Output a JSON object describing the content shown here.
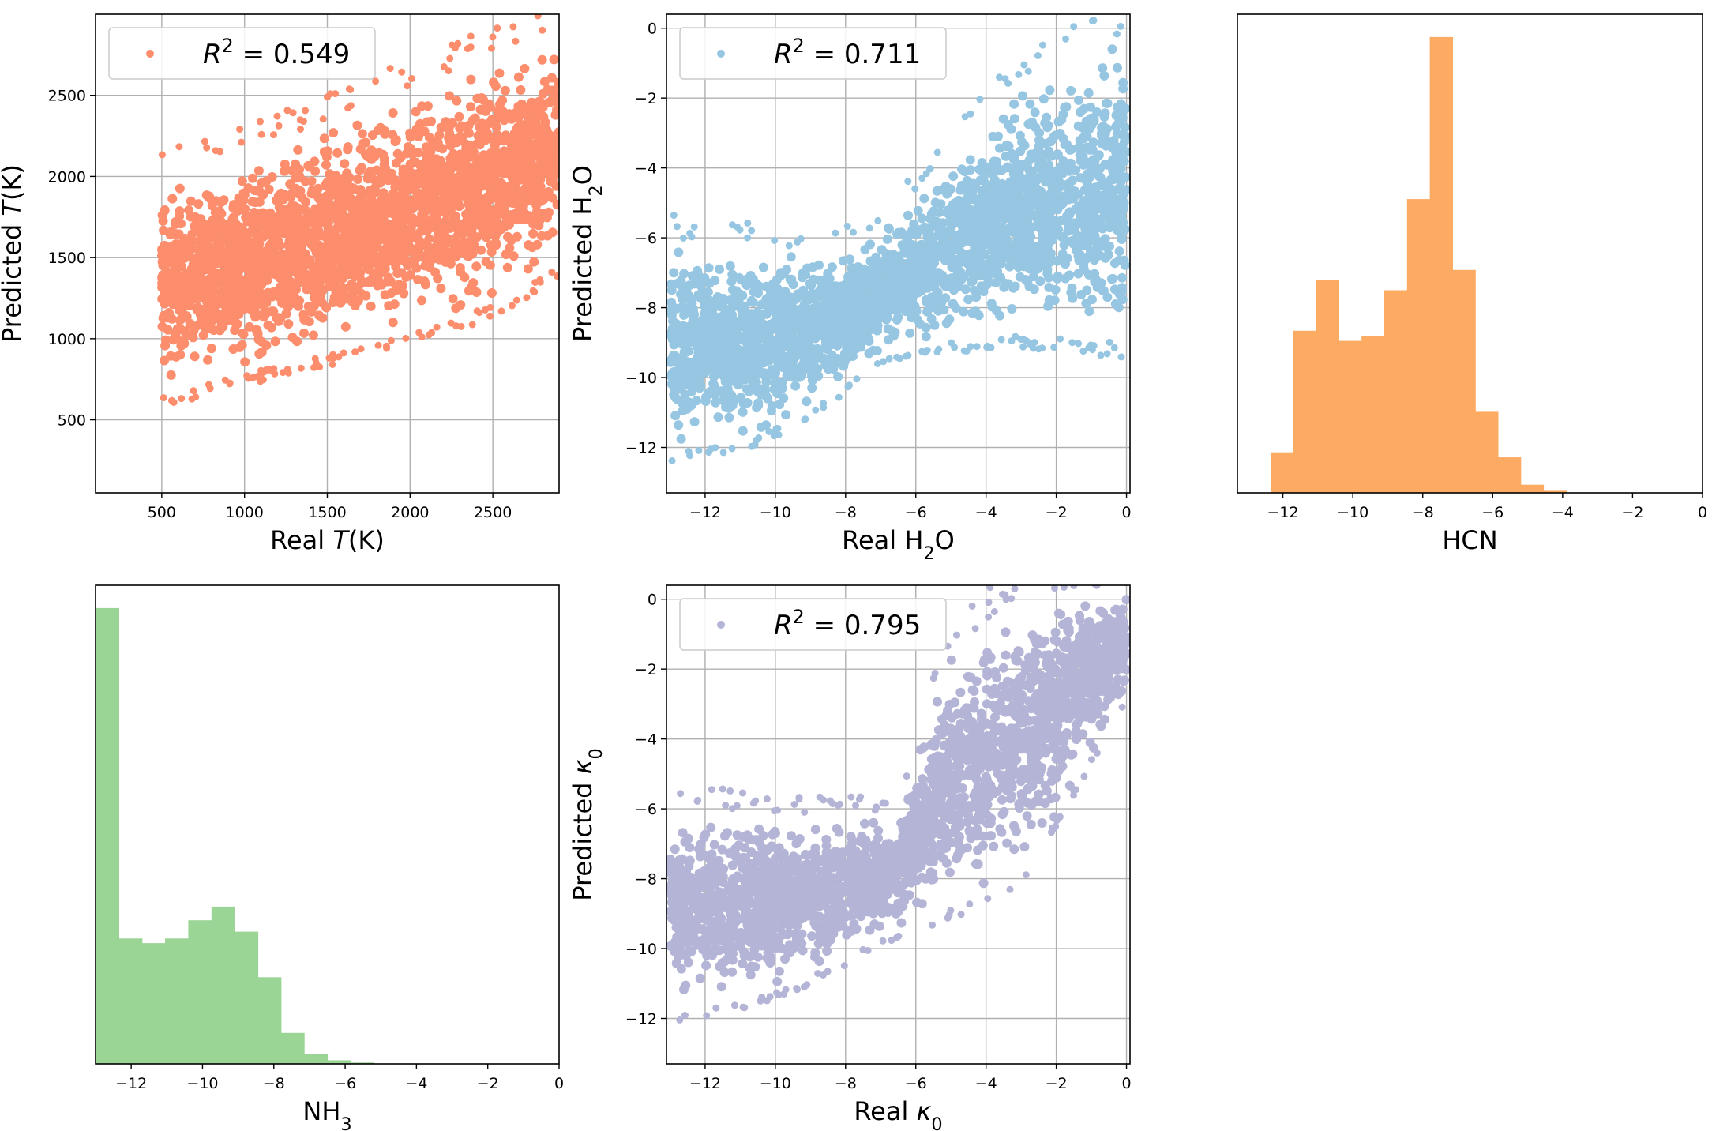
{
  "chart_data": [
    {
      "id": "temperature",
      "type": "scatter",
      "color": "#fc8d6d",
      "xlabel": {
        "prefix": "Real ",
        "italic": "T",
        "suffix": "(K)"
      },
      "ylabel": {
        "prefix": "Predicted ",
        "italic": "T",
        "suffix": "(K)"
      },
      "xlim": [
        100,
        2900
      ],
      "ylim": [
        50,
        3000
      ],
      "xticks": [
        500,
        1000,
        1500,
        2000,
        2500
      ],
      "yticks": [
        500,
        1000,
        1500,
        2000,
        2500
      ],
      "grid": true,
      "legend": {
        "label": "R² = 0.549",
        "r2_prefix": "R",
        "r2_power": "2",
        "r2_value": " = 0.549",
        "position": "top-left"
      },
      "band": [
        [
          500,
          650,
          2050
        ],
        [
          1000,
          780,
          2150
        ],
        [
          1500,
          900,
          2350
        ],
        [
          2000,
          1050,
          2550
        ],
        [
          2500,
          1200,
          2750
        ],
        [
          2900,
          1450,
          2880
        ]
      ]
    },
    {
      "id": "h2o",
      "type": "scatter",
      "color": "#96c6e1",
      "xlabel": {
        "prefix": "Real H",
        "sub": "2",
        "suffix": "O"
      },
      "ylabel": {
        "prefix": "Predicted H",
        "sub": "2",
        "suffix": "O"
      },
      "xlim": [
        -13.1,
        0.1
      ],
      "ylim": [
        -13.3,
        0.4
      ],
      "xticks": [
        -12,
        -10,
        -8,
        -6,
        -4,
        -2,
        0
      ],
      "yticks": [
        -12,
        -10,
        -8,
        -6,
        -4,
        -2,
        0
      ],
      "grid": true,
      "legend": {
        "label": "R² = 0.711",
        "r2_prefix": "R",
        "r2_power": "2",
        "r2_value": " = 0.711",
        "position": "top-left"
      },
      "band": [
        [
          -13,
          -12.1,
          -6.0
        ],
        [
          -11,
          -11.9,
          -6.2
        ],
        [
          -9,
          -11.0,
          -6.4
        ],
        [
          -7,
          -9.5,
          -5.8
        ],
        [
          -5,
          -9.0,
          -3.5
        ],
        [
          -3,
          -8.8,
          -1.5
        ],
        [
          0,
          -9.0,
          -0.05
        ]
      ]
    },
    {
      "id": "hcn",
      "type": "bar",
      "subtype": "histogram",
      "color": "#fdaa62",
      "xlabel": {
        "prefix": "HCN"
      },
      "xlim": [
        -13.3,
        0
      ],
      "xticks": [
        -12,
        -10,
        -8,
        -6,
        -4,
        -2,
        0
      ],
      "grid": false,
      "bin_edges": [
        -12.35,
        -11.7,
        -11.05,
        -10.4,
        -9.75,
        -9.1,
        -8.45,
        -7.8,
        -7.15,
        -6.5,
        -5.85,
        -5.2,
        -4.55,
        -3.9
      ],
      "counts": [
        4,
        16,
        21,
        15,
        15.5,
        20,
        29,
        45,
        22,
        8,
        3.5,
        0.8,
        0.2
      ]
    },
    {
      "id": "nh3",
      "type": "bar",
      "subtype": "histogram",
      "color": "#9ad595",
      "xlabel": {
        "prefix": "NH",
        "sub": "3"
      },
      "xlim": [
        -13,
        0
      ],
      "xticks": [
        -12,
        -10,
        -8,
        -6,
        -4,
        -2,
        0
      ],
      "grid": false,
      "bin_edges": [
        -13.0,
        -12.35,
        -11.7,
        -11.05,
        -10.4,
        -9.75,
        -9.1,
        -8.45,
        -7.8,
        -7.15,
        -6.5,
        -5.85,
        -5.2
      ],
      "counts": [
        100,
        27.5,
        26.5,
        27.5,
        31.5,
        34.5,
        29,
        19,
        6.8,
        2.2,
        0.8,
        0.3
      ]
    },
    {
      "id": "kappa",
      "type": "scatter",
      "color": "#b4b4d6",
      "xlabel": {
        "prefix": "Real ",
        "italic": "κ",
        "sub": "0"
      },
      "ylabel": {
        "prefix": "Predicted ",
        "italic": "κ",
        "sub": "0"
      },
      "xlim": [
        -13.1,
        0.1
      ],
      "ylim": [
        -13.3,
        0.4
      ],
      "xticks": [
        -12,
        -10,
        -8,
        -6,
        -4,
        -2,
        0
      ],
      "yticks": [
        -12,
        -10,
        -8,
        -6,
        -4,
        -2,
        0
      ],
      "grid": true,
      "legend": {
        "label": "R² = 0.795",
        "r2_prefix": "R",
        "r2_power": "2",
        "r2_value": " = 0.795",
        "position": "top-left"
      },
      "band": [
        [
          -13,
          -11.8,
          -5.8
        ],
        [
          -11,
          -11.6,
          -6.1
        ],
        [
          -9,
          -10.8,
          -6.2
        ],
        [
          -6.5,
          -9.5,
          -6.0
        ],
        [
          -5,
          -8.8,
          -1.5
        ],
        [
          -3,
          -8.0,
          0.2
        ],
        [
          0,
          -2.8,
          0.35
        ]
      ]
    }
  ]
}
